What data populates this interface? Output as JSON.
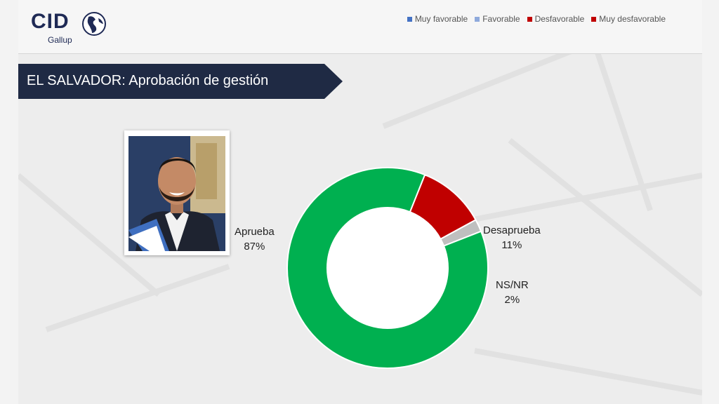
{
  "brand": {
    "name": "CID",
    "sub": "Gallup"
  },
  "legend": [
    {
      "label": "Muy favorable",
      "color": "#4472c4"
    },
    {
      "label": "Favorable",
      "color": "#8faadc"
    },
    {
      "label": "Desfavorable",
      "color": "#c00000"
    },
    {
      "label": "Muy desfavorable",
      "color": "#c00000"
    }
  ],
  "title": "EL SALVADOR: Aprobación de gestión",
  "chart_data": {
    "type": "pie",
    "donut": true,
    "categories": [
      "Aprueba",
      "Desaprueba",
      "NS/NR"
    ],
    "values": [
      87,
      11,
      2
    ],
    "value_labels": [
      "87%",
      "11%",
      "2%"
    ],
    "colors": [
      "#00b050",
      "#c00000",
      "#bfbfbf"
    ]
  }
}
